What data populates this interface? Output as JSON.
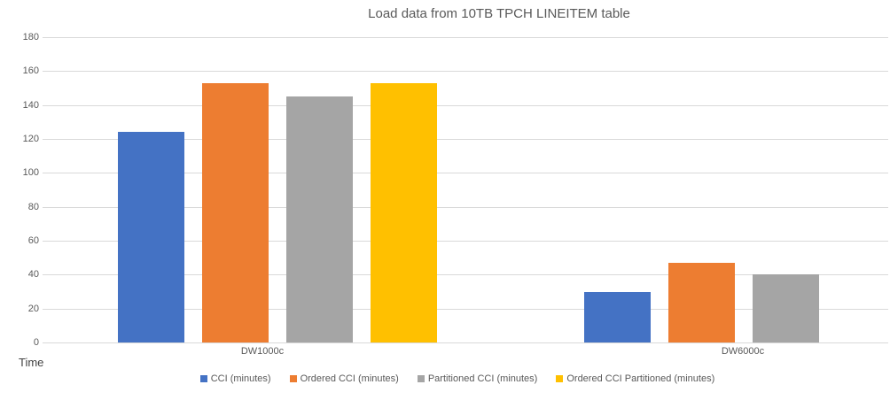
{
  "chart_data": {
    "type": "bar",
    "title": "Load data from 10TB TPCH LINEITEM table",
    "xlabel": "",
    "ylabel": "Time",
    "ylim": [
      0,
      180
    ],
    "ytick_step": 20,
    "grid": true,
    "legend_position": "bottom",
    "categories": [
      "DW1000c",
      "DW6000c"
    ],
    "series": [
      {
        "name": "CCI (minutes)",
        "color": "#4472C4",
        "values": [
          124,
          30
        ]
      },
      {
        "name": "Ordered CCI (minutes)",
        "color": "#ED7D31",
        "values": [
          153,
          47
        ]
      },
      {
        "name": "Partitioned CCI (minutes)",
        "color": "#A5A5A5",
        "values": [
          145,
          40
        ]
      },
      {
        "name": "Ordered CCI Partitioned (minutes)",
        "color": "#FFC000",
        "values": [
          153,
          null
        ]
      }
    ]
  },
  "colors": {
    "gridline": "#d9d9d9",
    "axis_text": "#595959",
    "title_text": "#595959",
    "axis_title_text": "#404040"
  }
}
